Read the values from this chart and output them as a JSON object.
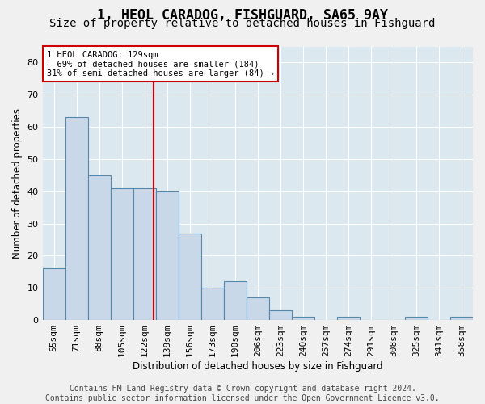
{
  "title": "1, HEOL CARADOG, FISHGUARD, SA65 9AY",
  "subtitle": "Size of property relative to detached houses in Fishguard",
  "xlabel": "Distribution of detached houses by size in Fishguard",
  "ylabel": "Number of detached properties",
  "bar_values": [
    16,
    63,
    45,
    41,
    41,
    40,
    27,
    10,
    12,
    7,
    3,
    1,
    0,
    1,
    0,
    0,
    1,
    0,
    1
  ],
  "bin_labels": [
    "55sqm",
    "71sqm",
    "88sqm",
    "105sqm",
    "122sqm",
    "139sqm",
    "156sqm",
    "173sqm",
    "190sqm",
    "206sqm",
    "223sqm",
    "240sqm",
    "257sqm",
    "274sqm",
    "291sqm",
    "308sqm",
    "325sqm",
    "341sqm",
    "358sqm"
  ],
  "bar_color": "#c8d8e8",
  "bar_edge_color": "#5588aa",
  "bar_edge_width": 0.8,
  "vline_color": "#cc0000",
  "annotation_text": "1 HEOL CARADOG: 129sqm\n← 69% of detached houses are smaller (184)\n31% of semi-detached houses are larger (84) →",
  "annotation_box_color": "#ffffff",
  "annotation_box_edge": "#cc0000",
  "ylim": [
    0,
    85
  ],
  "yticks": [
    0,
    10,
    20,
    30,
    40,
    50,
    60,
    70,
    80
  ],
  "footer_text": "Contains HM Land Registry data © Crown copyright and database right 2024.\nContains public sector information licensed under the Open Government Licence v3.0.",
  "background_color": "#dce8f0",
  "grid_color": "#ffffff",
  "title_fontsize": 12,
  "subtitle_fontsize": 10,
  "axis_label_fontsize": 8.5,
  "tick_fontsize": 8,
  "footer_fontsize": 7
}
